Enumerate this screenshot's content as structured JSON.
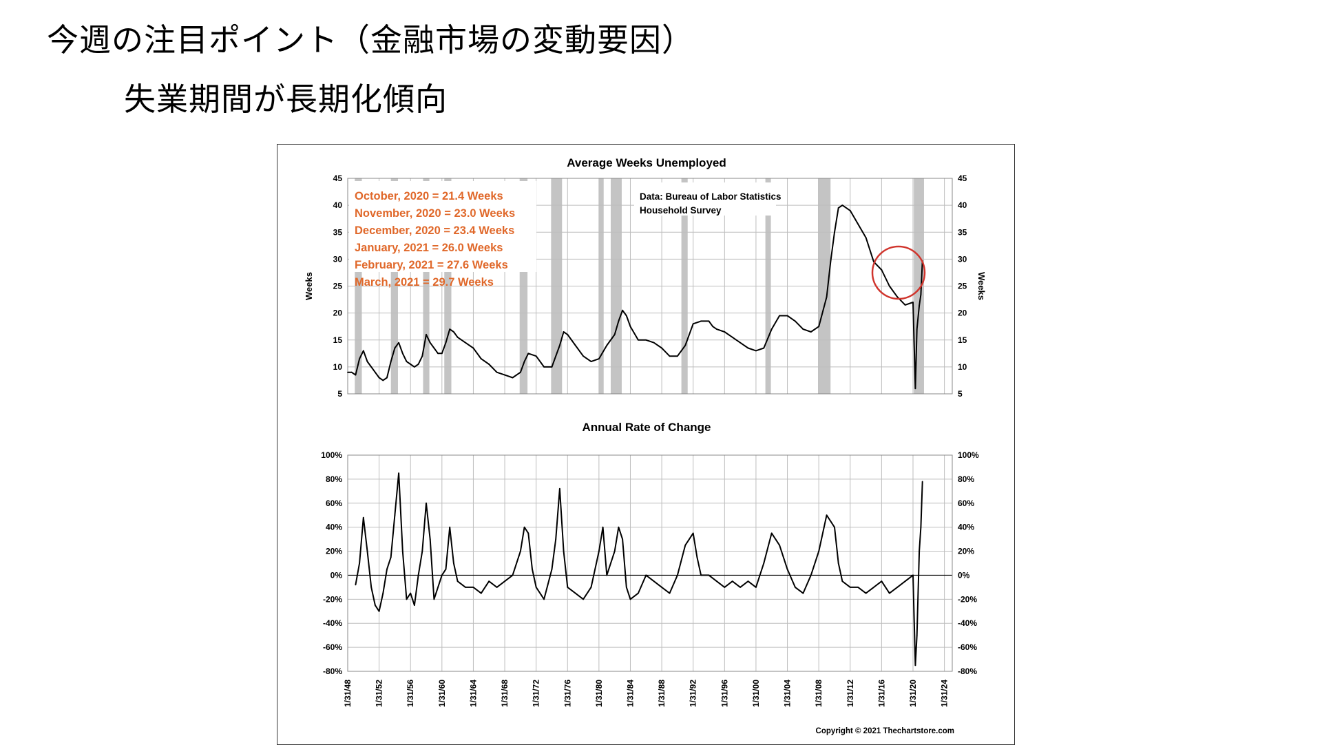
{
  "slide": {
    "title": "今週の注目ポイント（金融市場の変動要因）",
    "subtitle": "失業期間が長期化傾向"
  },
  "chart_data": [
    {
      "type": "line",
      "title": "Average Weeks Unemployed",
      "ylabel": "Weeks",
      "ylim": [
        5,
        45
      ],
      "yticks": [
        "5",
        "10",
        "15",
        "20",
        "25",
        "30",
        "35",
        "40",
        "45"
      ],
      "xlim": [
        1948,
        2025
      ],
      "xticks": [
        "1/31/48",
        "1/31/52",
        "1/31/56",
        "1/31/60",
        "1/31/64",
        "1/31/68",
        "1/31/72",
        "1/31/76",
        "1/31/80",
        "1/31/84",
        "1/31/88",
        "1/31/92",
        "1/31/96",
        "1/31/00",
        "1/31/04",
        "1/31/08",
        "1/31/12",
        "1/31/16",
        "1/31/20",
        "1/31/24"
      ],
      "recessions": [
        [
          1948.9,
          1949.8
        ],
        [
          1953.5,
          1954.4
        ],
        [
          1957.6,
          1958.4
        ],
        [
          1960.3,
          1961.2
        ],
        [
          1969.9,
          1970.9
        ],
        [
          1973.9,
          1975.3
        ],
        [
          1980.0,
          1980.6
        ],
        [
          1981.5,
          1982.9
        ],
        [
          1990.5,
          1991.3
        ],
        [
          2001.2,
          2001.9
        ],
        [
          2007.9,
          2009.5
        ],
        [
          2020.1,
          2021.4
        ]
      ],
      "annotations": {
        "highlights": [
          "October, 2020 = 21.4 Weeks",
          "November, 2020 = 23.0 Weeks",
          "December, 2020 = 23.4 Weeks",
          "January, 2021 = 26.0 Weeks",
          "February, 2021 = 27.6 Weeks",
          "March, 2021 = 29.7 Weeks"
        ],
        "source": [
          "Data:  Bureau of Labor Statistics",
          "Household Survey"
        ]
      },
      "highlight_color": "#e0682a",
      "circle_color": "#d0342c",
      "series": [
        {
          "x": [
            1948.0,
            1948.5,
            1949.0,
            1949.5,
            1950.0,
            1950.5,
            1951.0,
            1951.5,
            1952.0,
            1952.5,
            1953.0,
            1953.5,
            1954.0,
            1954.5,
            1955.0,
            1955.5,
            1956.0,
            1956.5,
            1957.0,
            1957.5,
            1958.0,
            1958.5,
            1959.0,
            1959.5,
            1960.0,
            1960.5,
            1961.0,
            1961.5,
            1962.0,
            1963.0,
            1964.0,
            1965.0,
            1966.0,
            1967.0,
            1968.0,
            1969.0,
            1970.0,
            1970.5,
            1971.0,
            1972.0,
            1973.0,
            1974.0,
            1975.0,
            1975.5,
            1976.0,
            1977.0,
            1978.0,
            1979.0,
            1980.0,
            1981.0,
            1982.0,
            1982.5,
            1983.0,
            1983.5,
            1984.0,
            1985.0,
            1986.0,
            1987.0,
            1988.0,
            1989.0,
            1990.0,
            1991.0,
            1992.0,
            1993.0,
            1994.0,
            1994.5,
            1995.0,
            1996.0,
            1997.0,
            1998.0,
            1999.0,
            2000.0,
            2001.0,
            2002.0,
            2003.0,
            2004.0,
            2005.0,
            2006.0,
            2007.0,
            2008.0,
            2009.0,
            2009.5,
            2010.0,
            2010.5,
            2011.0,
            2012.0,
            2013.0,
            2014.0,
            2015.0,
            2016.0,
            2017.0,
            2018.0,
            2019.0,
            2020.0,
            2020.3,
            2020.5,
            2020.8,
            2021.0,
            2021.2
          ],
          "values": [
            9.0,
            9.0,
            8.5,
            11.5,
            13.0,
            11.0,
            10.0,
            9.0,
            8.0,
            7.5,
            8.0,
            11.0,
            13.5,
            14.5,
            12.5,
            11.0,
            10.5,
            10.0,
            10.5,
            12.0,
            16.0,
            14.5,
            13.5,
            12.5,
            12.5,
            14.5,
            17.0,
            16.5,
            15.5,
            14.5,
            13.5,
            11.5,
            10.5,
            9.0,
            8.5,
            8.0,
            9.0,
            11.0,
            12.5,
            12.0,
            10.0,
            10.0,
            14.0,
            16.5,
            16.0,
            14.0,
            12.0,
            11.0,
            11.5,
            14.0,
            16.0,
            18.5,
            20.5,
            19.5,
            17.5,
            15.0,
            15.0,
            14.5,
            13.5,
            12.0,
            12.0,
            14.0,
            18.0,
            18.5,
            18.5,
            17.5,
            17.0,
            16.5,
            15.5,
            14.5,
            13.5,
            13.0,
            13.5,
            17.0,
            19.5,
            19.5,
            18.5,
            17.0,
            16.5,
            17.5,
            23.0,
            29.5,
            35.0,
            39.5,
            40.0,
            39.0,
            36.5,
            34.0,
            29.5,
            28.0,
            25.0,
            23.0,
            21.5,
            22.0,
            6.0,
            17.0,
            21.4,
            23.4,
            29.7
          ]
        }
      ]
    },
    {
      "type": "line",
      "title": "Annual Rate of Change",
      "ylim": [
        -80,
        100
      ],
      "yticks": [
        "-80%",
        "-60%",
        "-40%",
        "-20%",
        "0%",
        "20%",
        "40%",
        "60%",
        "80%",
        "100%"
      ],
      "xlim": [
        1948,
        2025
      ],
      "xticks": [
        "1/31/48",
        "1/31/52",
        "1/31/56",
        "1/31/60",
        "1/31/64",
        "1/31/68",
        "1/31/72",
        "1/31/76",
        "1/31/80",
        "1/31/84",
        "1/31/88",
        "1/31/92",
        "1/31/96",
        "1/31/00",
        "1/31/04",
        "1/31/08",
        "1/31/12",
        "1/31/16",
        "1/31/20",
        "1/31/24"
      ],
      "series": [
        {
          "x": [
            1949.0,
            1949.5,
            1950.0,
            1950.5,
            1951.0,
            1951.5,
            1952.0,
            1952.5,
            1953.0,
            1953.5,
            1954.0,
            1954.5,
            1955.0,
            1955.5,
            1956.0,
            1956.5,
            1957.0,
            1957.5,
            1958.0,
            1958.5,
            1959.0,
            1959.5,
            1960.0,
            1960.5,
            1961.0,
            1961.5,
            1962.0,
            1963.0,
            1964.0,
            1965.0,
            1966.0,
            1967.0,
            1968.0,
            1969.0,
            1970.0,
            1970.5,
            1971.0,
            1971.5,
            1972.0,
            1973.0,
            1974.0,
            1974.5,
            1975.0,
            1975.5,
            1976.0,
            1977.0,
            1978.0,
            1979.0,
            1980.0,
            1980.5,
            1981.0,
            1982.0,
            1982.5,
            1983.0,
            1983.5,
            1984.0,
            1985.0,
            1986.0,
            1987.0,
            1988.0,
            1989.0,
            1990.0,
            1991.0,
            1992.0,
            1992.5,
            1993.0,
            1994.0,
            1995.0,
            1996.0,
            1997.0,
            1998.0,
            1999.0,
            2000.0,
            2001.0,
            2002.0,
            2003.0,
            2004.0,
            2005.0,
            2006.0,
            2007.0,
            2008.0,
            2009.0,
            2010.0,
            2010.5,
            2011.0,
            2012.0,
            2013.0,
            2014.0,
            2015.0,
            2016.0,
            2017.0,
            2018.0,
            2019.0,
            2020.0,
            2020.3,
            2020.5,
            2020.8,
            2021.0,
            2021.2
          ],
          "values": [
            -8,
            10,
            48,
            20,
            -10,
            -25,
            -30,
            -15,
            5,
            15,
            50,
            85,
            20,
            -20,
            -15,
            -25,
            0,
            20,
            60,
            30,
            -20,
            -10,
            0,
            5,
            40,
            10,
            -5,
            -10,
            -10,
            -15,
            -5,
            -10,
            -5,
            0,
            20,
            40,
            35,
            5,
            -10,
            -20,
            5,
            30,
            72,
            20,
            -10,
            -15,
            -20,
            -10,
            20,
            40,
            0,
            20,
            40,
            30,
            -10,
            -20,
            -15,
            0,
            -5,
            -10,
            -15,
            0,
            25,
            35,
            15,
            0,
            0,
            -5,
            -10,
            -5,
            -10,
            -5,
            -10,
            10,
            35,
            25,
            5,
            -10,
            -15,
            0,
            20,
            50,
            40,
            10,
            -5,
            -10,
            -10,
            -15,
            -10,
            -5,
            -15,
            -10,
            -5,
            0,
            -75,
            -50,
            20,
            40,
            78
          ]
        }
      ]
    }
  ],
  "footer": {
    "copyright": "Copyright © 2021 Thechartstore.com"
  }
}
